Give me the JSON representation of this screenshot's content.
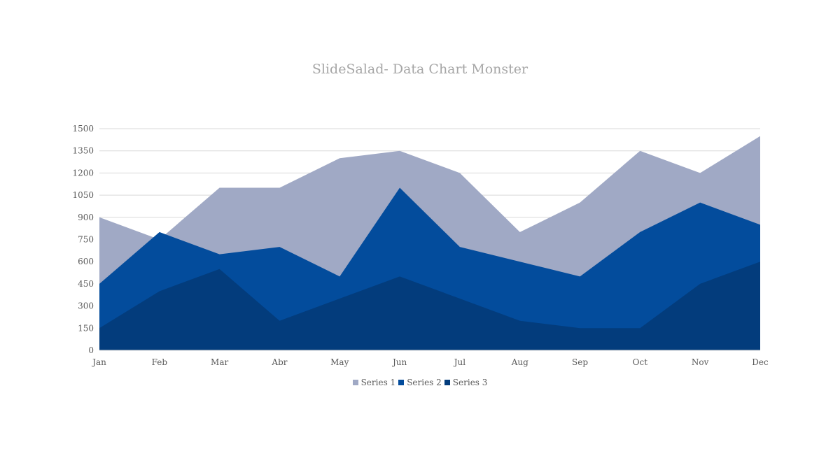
{
  "chart_data": {
    "type": "area",
    "title": "SlideSalad- Data Chart Monster",
    "xlabel": "",
    "ylabel": "",
    "categories": [
      "Jan",
      "Feb",
      "Mar",
      "Abr",
      "May",
      "Jun",
      "Jul",
      "Aug",
      "Sep",
      "Oct",
      "Nov",
      "Dec"
    ],
    "yticks": [
      0,
      150,
      300,
      450,
      600,
      750,
      900,
      1050,
      1200,
      1350,
      1500
    ],
    "ylim": [
      0,
      1500
    ],
    "grid": true,
    "legend_position": "bottom",
    "series": [
      {
        "name": "Series 1",
        "color": "#a0a9c5",
        "values": [
          900,
          750,
          1100,
          1100,
          1300,
          1350,
          1200,
          800,
          1000,
          1350,
          1200,
          1450
        ]
      },
      {
        "name": "Series 2",
        "color": "#034c9c",
        "values": [
          450,
          800,
          650,
          700,
          500,
          1100,
          700,
          600,
          500,
          800,
          1000,
          850
        ]
      },
      {
        "name": "Series 3",
        "color": "#033c7c",
        "values": [
          150,
          400,
          550,
          200,
          350,
          500,
          350,
          200,
          150,
          150,
          450,
          600
        ]
      }
    ]
  }
}
